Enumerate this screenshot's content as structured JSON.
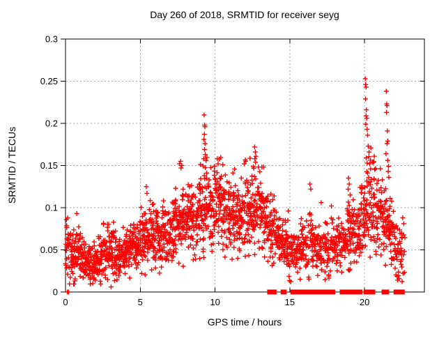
{
  "window": {
    "background": "#ffffff"
  },
  "chart_data": {
    "type": "scatter",
    "title": "Day 260 of 2018, SRMTID for receiver seyg",
    "xlabel": "GPS time / hours",
    "ylabel": "SRMTID / TECUs",
    "xlim": [
      0,
      24
    ],
    "ylim": [
      0,
      0.3
    ],
    "xticks": [
      0,
      5,
      10,
      15,
      20
    ],
    "xtick_labels": [
      "0",
      "5",
      "10",
      "15",
      "20"
    ],
    "yticks": [
      0,
      0.05,
      0.1,
      0.15,
      0.2,
      0.25,
      0.3
    ],
    "ytick_labels": [
      "0",
      "0.05",
      "0.1",
      "0.15",
      "0.2",
      "0.25",
      "0.3"
    ],
    "grid": true,
    "legend": "none",
    "marker": "plus",
    "marker_color": "#ff0000",
    "grid_color": "#a6a6a6",
    "axis_color": "#000000",
    "seed": 20180917,
    "bin_hours": 0.25,
    "density_profile": [
      [
        0.0,
        0.052,
        0.017,
        26
      ],
      [
        0.25,
        0.048,
        0.016,
        26
      ],
      [
        0.5,
        0.043,
        0.014,
        26
      ],
      [
        0.75,
        0.047,
        0.016,
        26
      ],
      [
        1.0,
        0.041,
        0.013,
        26
      ],
      [
        1.25,
        0.037,
        0.012,
        26
      ],
      [
        1.5,
        0.034,
        0.011,
        26
      ],
      [
        1.75,
        0.033,
        0.011,
        26
      ],
      [
        2.0,
        0.037,
        0.012,
        26
      ],
      [
        2.25,
        0.043,
        0.014,
        26
      ],
      [
        2.5,
        0.049,
        0.015,
        26
      ],
      [
        2.75,
        0.053,
        0.016,
        26
      ],
      [
        3.0,
        0.047,
        0.015,
        26
      ],
      [
        3.25,
        0.041,
        0.013,
        26
      ],
      [
        3.5,
        0.039,
        0.013,
        26
      ],
      [
        3.75,
        0.043,
        0.014,
        26
      ],
      [
        4.0,
        0.049,
        0.015,
        26
      ],
      [
        4.25,
        0.053,
        0.016,
        26
      ],
      [
        4.5,
        0.056,
        0.016,
        26
      ],
      [
        4.75,
        0.059,
        0.017,
        26
      ],
      [
        5.0,
        0.062,
        0.018,
        26
      ],
      [
        5.25,
        0.066,
        0.019,
        26
      ],
      [
        5.5,
        0.068,
        0.019,
        26
      ],
      [
        5.75,
        0.063,
        0.018,
        26
      ],
      [
        6.0,
        0.059,
        0.017,
        26
      ],
      [
        6.25,
        0.061,
        0.017,
        26
      ],
      [
        6.5,
        0.065,
        0.018,
        26
      ],
      [
        6.75,
        0.068,
        0.019,
        26
      ],
      [
        7.0,
        0.072,
        0.019,
        26
      ],
      [
        7.25,
        0.075,
        0.02,
        26
      ],
      [
        7.5,
        0.078,
        0.02,
        26
      ],
      [
        7.75,
        0.081,
        0.021,
        26
      ],
      [
        8.0,
        0.085,
        0.021,
        26
      ],
      [
        8.25,
        0.088,
        0.022,
        26
      ],
      [
        8.5,
        0.091,
        0.022,
        26
      ],
      [
        8.75,
        0.093,
        0.023,
        26
      ],
      [
        9.0,
        0.096,
        0.023,
        26
      ],
      [
        9.25,
        0.102,
        0.024,
        26
      ],
      [
        9.5,
        0.101,
        0.024,
        26
      ],
      [
        9.75,
        0.099,
        0.024,
        26
      ],
      [
        10.0,
        0.101,
        0.024,
        26
      ],
      [
        10.25,
        0.102,
        0.024,
        26
      ],
      [
        10.5,
        0.096,
        0.023,
        26
      ],
      [
        10.75,
        0.093,
        0.022,
        26
      ],
      [
        11.0,
        0.091,
        0.022,
        26
      ],
      [
        11.25,
        0.093,
        0.022,
        26
      ],
      [
        11.5,
        0.095,
        0.023,
        26
      ],
      [
        11.75,
        0.097,
        0.023,
        26
      ],
      [
        12.0,
        0.099,
        0.024,
        26
      ],
      [
        12.25,
        0.101,
        0.024,
        26
      ],
      [
        12.5,
        0.102,
        0.024,
        26
      ],
      [
        12.75,
        0.099,
        0.024,
        26
      ],
      [
        13.0,
        0.093,
        0.023,
        26
      ],
      [
        13.25,
        0.086,
        0.022,
        26
      ],
      [
        13.5,
        0.079,
        0.02,
        24
      ],
      [
        13.75,
        0.071,
        0.019,
        23
      ],
      [
        14.0,
        0.063,
        0.018,
        24
      ],
      [
        14.25,
        0.058,
        0.017,
        24
      ],
      [
        14.5,
        0.053,
        0.016,
        24
      ],
      [
        14.75,
        0.049,
        0.015,
        24
      ],
      [
        15.0,
        0.045,
        0.014,
        23
      ],
      [
        15.25,
        0.046,
        0.014,
        22
      ],
      [
        15.5,
        0.048,
        0.015,
        22
      ],
      [
        15.75,
        0.051,
        0.015,
        22
      ],
      [
        16.0,
        0.053,
        0.016,
        22
      ],
      [
        16.25,
        0.056,
        0.017,
        22
      ],
      [
        16.5,
        0.051,
        0.015,
        21
      ],
      [
        16.75,
        0.049,
        0.015,
        21
      ],
      [
        17.0,
        0.051,
        0.015,
        21
      ],
      [
        17.25,
        0.053,
        0.016,
        21
      ],
      [
        17.5,
        0.051,
        0.015,
        21
      ],
      [
        17.75,
        0.056,
        0.016,
        21
      ],
      [
        18.0,
        0.056,
        0.016,
        22
      ],
      [
        18.25,
        0.059,
        0.017,
        22
      ],
      [
        18.5,
        0.061,
        0.017,
        23
      ],
      [
        18.75,
        0.066,
        0.018,
        24
      ],
      [
        19.0,
        0.069,
        0.019,
        24
      ],
      [
        19.25,
        0.071,
        0.019,
        24
      ],
      [
        19.5,
        0.076,
        0.02,
        26
      ],
      [
        19.75,
        0.086,
        0.022,
        26
      ],
      [
        20.0,
        0.102,
        0.027,
        26
      ],
      [
        20.25,
        0.106,
        0.027,
        26
      ],
      [
        20.5,
        0.101,
        0.025,
        25
      ],
      [
        20.75,
        0.096,
        0.024,
        24
      ],
      [
        21.0,
        0.091,
        0.023,
        24
      ],
      [
        21.25,
        0.087,
        0.023,
        24
      ],
      [
        21.5,
        0.081,
        0.022,
        24
      ],
      [
        21.75,
        0.066,
        0.02,
        22
      ],
      [
        22.0,
        0.056,
        0.018,
        22
      ],
      [
        22.25,
        0.049,
        0.016,
        20
      ],
      [
        22.5,
        0.046,
        0.014,
        8
      ]
    ],
    "outliers": [
      [
        0.15,
        0.088
      ],
      [
        0.75,
        0.093
      ],
      [
        3.05,
        0.006
      ],
      [
        5.4,
        0.125
      ],
      [
        5.45,
        0.117
      ],
      [
        7.62,
        0.152
      ],
      [
        7.7,
        0.155
      ],
      [
        7.78,
        0.15
      ],
      [
        7.72,
        0.147
      ],
      [
        9.27,
        0.21
      ],
      [
        9.3,
        0.198
      ],
      [
        9.32,
        0.196
      ],
      [
        9.29,
        0.187
      ],
      [
        9.26,
        0.181
      ],
      [
        9.33,
        0.176
      ],
      [
        9.3,
        0.169
      ],
      [
        9.35,
        0.163
      ],
      [
        9.24,
        0.158
      ],
      [
        9.4,
        0.156
      ],
      [
        10.15,
        0.158
      ],
      [
        10.2,
        0.152
      ],
      [
        11.95,
        0.152
      ],
      [
        12.05,
        0.155
      ],
      [
        12.65,
        0.172
      ],
      [
        12.7,
        0.166
      ],
      [
        12.73,
        0.161
      ],
      [
        12.66,
        0.158
      ],
      [
        12.71,
        0.154
      ],
      [
        14.9,
        0.096
      ],
      [
        16.35,
        0.128
      ],
      [
        16.4,
        0.122
      ],
      [
        17.1,
        0.106
      ],
      [
        17.78,
        0.102
      ],
      [
        18.92,
        0.135
      ],
      [
        18.97,
        0.128
      ],
      [
        18.9,
        0.122
      ],
      [
        19.03,
        0.115
      ],
      [
        20.05,
        0.253
      ],
      [
        20.07,
        0.246
      ],
      [
        20.1,
        0.243
      ],
      [
        20.06,
        0.229
      ],
      [
        20.12,
        0.216
      ],
      [
        20.1,
        0.209
      ],
      [
        20.14,
        0.206
      ],
      [
        20.08,
        0.199
      ],
      [
        20.17,
        0.193
      ],
      [
        20.2,
        0.186
      ],
      [
        20.24,
        0.173
      ],
      [
        20.3,
        0.166
      ],
      [
        20.11,
        0.159
      ],
      [
        20.34,
        0.152
      ],
      [
        20.4,
        0.146
      ],
      [
        21.45,
        0.238
      ],
      [
        21.48,
        0.223
      ],
      [
        21.5,
        0.221
      ],
      [
        21.47,
        0.213
      ],
      [
        21.52,
        0.191
      ],
      [
        21.55,
        0.179
      ],
      [
        21.5,
        0.176
      ],
      [
        21.43,
        0.164
      ],
      [
        21.55,
        0.156
      ],
      [
        21.6,
        0.149
      ],
      [
        21.58,
        0.143
      ],
      [
        21.62,
        0.136
      ],
      [
        22.55,
        0.088
      ],
      [
        22.62,
        0.081
      ]
    ],
    "zero_segments": [
      [
        13.65,
        13.95
      ],
      [
        14.55,
        14.62
      ],
      [
        15.2,
        15.38
      ],
      [
        15.55,
        15.72
      ],
      [
        15.8,
        16.08
      ],
      [
        16.3,
        16.52
      ],
      [
        16.65,
        17.12
      ],
      [
        17.25,
        17.5
      ],
      [
        17.62,
        17.7
      ],
      [
        17.8,
        17.87
      ],
      [
        18.5,
        18.72
      ],
      [
        18.8,
        18.98
      ],
      [
        19.15,
        19.28
      ],
      [
        19.4,
        19.52
      ],
      [
        19.6,
        19.7
      ],
      [
        20.1,
        20.14
      ],
      [
        20.4,
        20.55
      ],
      [
        21.3,
        21.35
      ],
      [
        21.43,
        21.48
      ],
      [
        22.1,
        22.52
      ]
    ],
    "zero_ticks": [
      0.12,
      0.2,
      14.68
    ]
  }
}
